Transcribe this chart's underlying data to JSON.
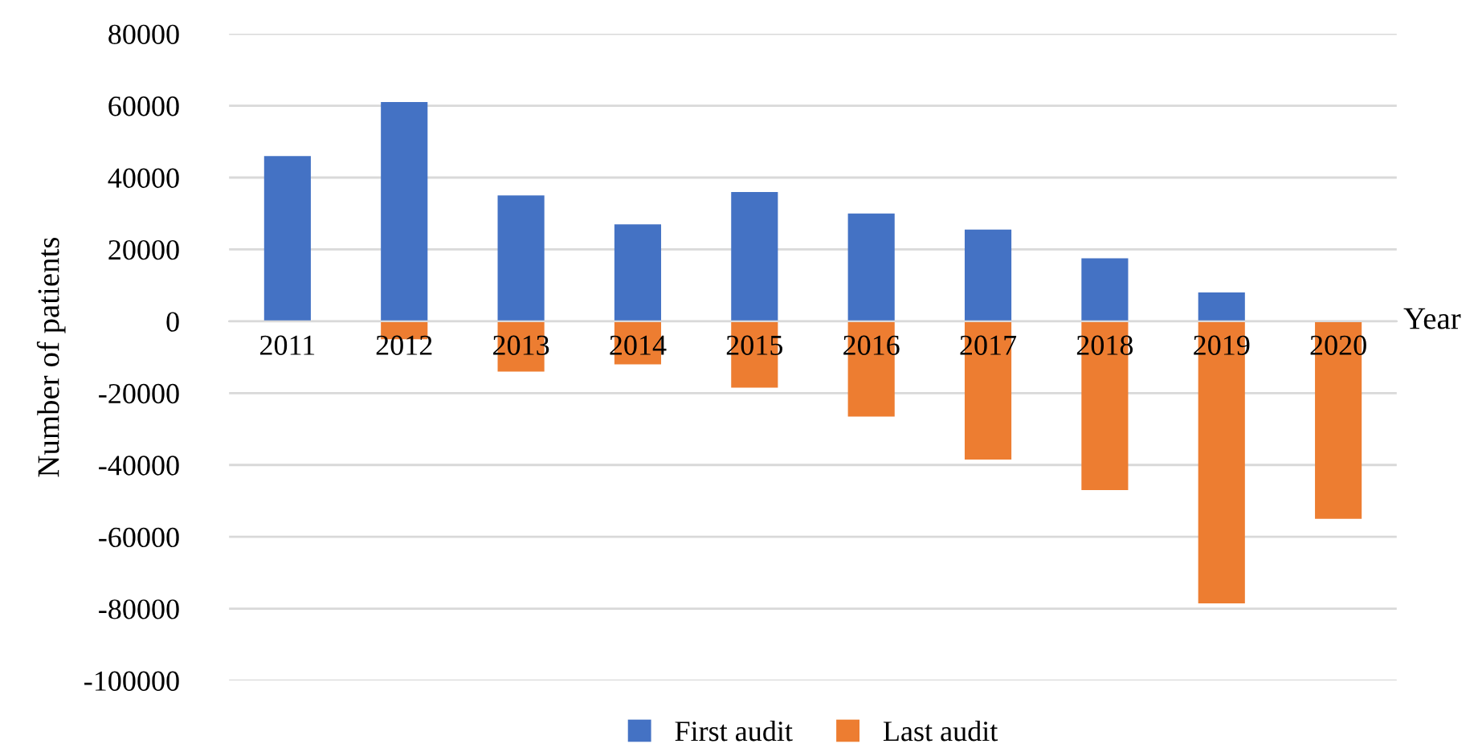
{
  "chart_data": {
    "type": "bar",
    "xlabel": "Year",
    "ylabel": "Number of patients",
    "categories": [
      "2011",
      "2012",
      "2013",
      "2014",
      "2015",
      "2016",
      "2017",
      "2018",
      "2019",
      "2020"
    ],
    "series": [
      {
        "name": "First audit",
        "color": "#4472c4",
        "values": [
          46000,
          61000,
          35000,
          27000,
          36000,
          30000,
          25500,
          17500,
          8000,
          0
        ]
      },
      {
        "name": "Last audit",
        "color": "#ed7d31",
        "values": [
          0,
          -5000,
          -14000,
          -12000,
          -18500,
          -26500,
          -38500,
          -47000,
          -78500,
          -55000
        ]
      }
    ],
    "ylim": [
      -100000,
      80000
    ],
    "yticks": [
      -100000,
      -80000,
      -60000,
      -40000,
      -20000,
      0,
      20000,
      40000,
      60000,
      80000
    ],
    "grid": "y",
    "legend": "bottom",
    "stacked": true
  }
}
